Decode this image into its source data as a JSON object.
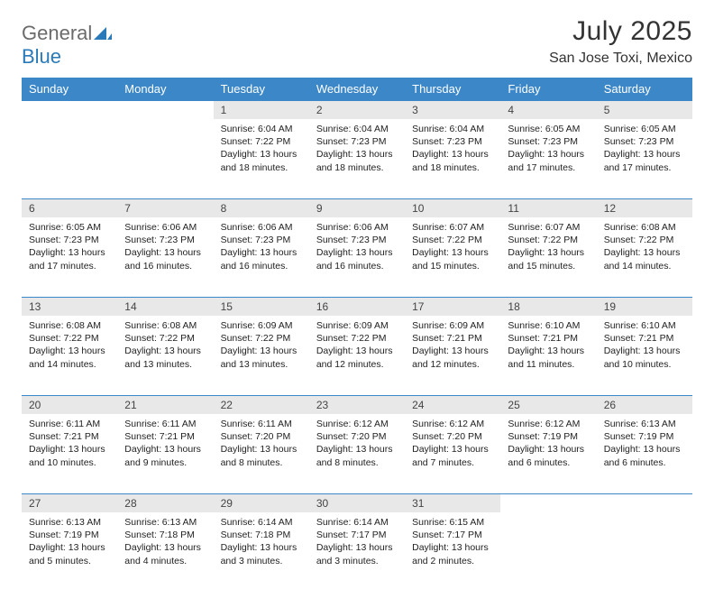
{
  "colors": {
    "header_bg": "#3b87c8",
    "header_text": "#ffffff",
    "daynum_bg": "#e8e8e8",
    "daynum_text": "#444444",
    "body_text": "#222222",
    "title_text": "#333333",
    "logo_gray": "#6b6b6b",
    "logo_blue": "#2a7ab9",
    "page_bg": "#ffffff",
    "row_divider": "#3b87c8"
  },
  "typography": {
    "month_title_fontsize": 30,
    "location_fontsize": 16,
    "weekday_fontsize": 13,
    "daynum_fontsize": 12,
    "cell_fontsize": 10.5,
    "font_family": "Arial"
  },
  "logo": {
    "text_a": "General",
    "text_b": "Blue"
  },
  "title": "July 2025",
  "location": "San Jose Toxi, Mexico",
  "weekdays": [
    "Sunday",
    "Monday",
    "Tuesday",
    "Wednesday",
    "Thursday",
    "Friday",
    "Saturday"
  ],
  "weeks": [
    [
      null,
      null,
      {
        "n": "1",
        "sr": "6:04 AM",
        "ss": "7:22 PM",
        "dl": "13 hours and 18 minutes."
      },
      {
        "n": "2",
        "sr": "6:04 AM",
        "ss": "7:23 PM",
        "dl": "13 hours and 18 minutes."
      },
      {
        "n": "3",
        "sr": "6:04 AM",
        "ss": "7:23 PM",
        "dl": "13 hours and 18 minutes."
      },
      {
        "n": "4",
        "sr": "6:05 AM",
        "ss": "7:23 PM",
        "dl": "13 hours and 17 minutes."
      },
      {
        "n": "5",
        "sr": "6:05 AM",
        "ss": "7:23 PM",
        "dl": "13 hours and 17 minutes."
      }
    ],
    [
      {
        "n": "6",
        "sr": "6:05 AM",
        "ss": "7:23 PM",
        "dl": "13 hours and 17 minutes."
      },
      {
        "n": "7",
        "sr": "6:06 AM",
        "ss": "7:23 PM",
        "dl": "13 hours and 16 minutes."
      },
      {
        "n": "8",
        "sr": "6:06 AM",
        "ss": "7:23 PM",
        "dl": "13 hours and 16 minutes."
      },
      {
        "n": "9",
        "sr": "6:06 AM",
        "ss": "7:23 PM",
        "dl": "13 hours and 16 minutes."
      },
      {
        "n": "10",
        "sr": "6:07 AM",
        "ss": "7:22 PM",
        "dl": "13 hours and 15 minutes."
      },
      {
        "n": "11",
        "sr": "6:07 AM",
        "ss": "7:22 PM",
        "dl": "13 hours and 15 minutes."
      },
      {
        "n": "12",
        "sr": "6:08 AM",
        "ss": "7:22 PM",
        "dl": "13 hours and 14 minutes."
      }
    ],
    [
      {
        "n": "13",
        "sr": "6:08 AM",
        "ss": "7:22 PM",
        "dl": "13 hours and 14 minutes."
      },
      {
        "n": "14",
        "sr": "6:08 AM",
        "ss": "7:22 PM",
        "dl": "13 hours and 13 minutes."
      },
      {
        "n": "15",
        "sr": "6:09 AM",
        "ss": "7:22 PM",
        "dl": "13 hours and 13 minutes."
      },
      {
        "n": "16",
        "sr": "6:09 AM",
        "ss": "7:22 PM",
        "dl": "13 hours and 12 minutes."
      },
      {
        "n": "17",
        "sr": "6:09 AM",
        "ss": "7:21 PM",
        "dl": "13 hours and 12 minutes."
      },
      {
        "n": "18",
        "sr": "6:10 AM",
        "ss": "7:21 PM",
        "dl": "13 hours and 11 minutes."
      },
      {
        "n": "19",
        "sr": "6:10 AM",
        "ss": "7:21 PM",
        "dl": "13 hours and 10 minutes."
      }
    ],
    [
      {
        "n": "20",
        "sr": "6:11 AM",
        "ss": "7:21 PM",
        "dl": "13 hours and 10 minutes."
      },
      {
        "n": "21",
        "sr": "6:11 AM",
        "ss": "7:21 PM",
        "dl": "13 hours and 9 minutes."
      },
      {
        "n": "22",
        "sr": "6:11 AM",
        "ss": "7:20 PM",
        "dl": "13 hours and 8 minutes."
      },
      {
        "n": "23",
        "sr": "6:12 AM",
        "ss": "7:20 PM",
        "dl": "13 hours and 8 minutes."
      },
      {
        "n": "24",
        "sr": "6:12 AM",
        "ss": "7:20 PM",
        "dl": "13 hours and 7 minutes."
      },
      {
        "n": "25",
        "sr": "6:12 AM",
        "ss": "7:19 PM",
        "dl": "13 hours and 6 minutes."
      },
      {
        "n": "26",
        "sr": "6:13 AM",
        "ss": "7:19 PM",
        "dl": "13 hours and 6 minutes."
      }
    ],
    [
      {
        "n": "27",
        "sr": "6:13 AM",
        "ss": "7:19 PM",
        "dl": "13 hours and 5 minutes."
      },
      {
        "n": "28",
        "sr": "6:13 AM",
        "ss": "7:18 PM",
        "dl": "13 hours and 4 minutes."
      },
      {
        "n": "29",
        "sr": "6:14 AM",
        "ss": "7:18 PM",
        "dl": "13 hours and 3 minutes."
      },
      {
        "n": "30",
        "sr": "6:14 AM",
        "ss": "7:17 PM",
        "dl": "13 hours and 3 minutes."
      },
      {
        "n": "31",
        "sr": "6:15 AM",
        "ss": "7:17 PM",
        "dl": "13 hours and 2 minutes."
      },
      null,
      null
    ]
  ],
  "labels": {
    "sunrise": "Sunrise:",
    "sunset": "Sunset:",
    "daylight": "Daylight:"
  }
}
